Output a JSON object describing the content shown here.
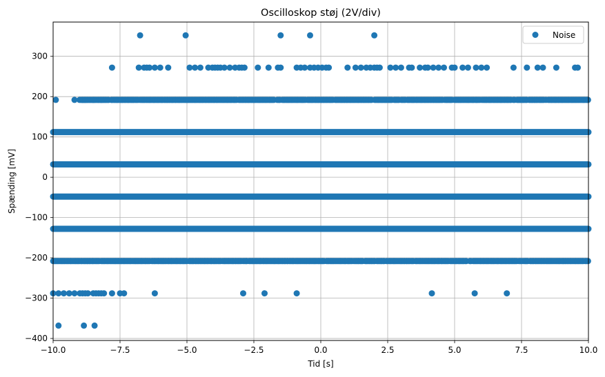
{
  "chart_data": {
    "type": "scatter",
    "title": "Oscilloskop støj (2V/div)",
    "xlabel": "Tid [s]",
    "ylabel": "Spænding [mV]",
    "xlim": [
      -10,
      10
    ],
    "ylim": [
      -405,
      385
    ],
    "grid": true,
    "legend_position": "top-right",
    "marker_color": "#1f77b4",
    "x_ticks": [
      -10,
      -7.5,
      -5,
      -2.5,
      0,
      2.5,
      5,
      7.5,
      10
    ],
    "x_tick_labels": [
      "−10.0",
      "−7.5",
      "−5.0",
      "−2.5",
      "0.0",
      "2.5",
      "5.0",
      "7.5",
      "10.0"
    ],
    "y_ticks": [
      -400,
      -300,
      -200,
      -100,
      0,
      100,
      200,
      300
    ],
    "y_tick_labels": [
      "−400",
      "−300",
      "−200",
      "−100",
      "0",
      "100",
      "200",
      "300"
    ],
    "series": [
      {
        "name": "Noise",
        "levels": [
          {
            "y": 32,
            "density": "continuous",
            "x_range": [
              -10,
              10
            ]
          },
          {
            "y": -48,
            "density": "continuous",
            "x_range": [
              -10,
              10
            ]
          },
          {
            "y": -128,
            "density": "continuous",
            "x_range": [
              -10,
              10
            ]
          },
          {
            "y": 112,
            "density": "continuous",
            "x_range": [
              -10,
              10
            ]
          },
          {
            "y": 192,
            "density": "dense",
            "x_range": [
              -9.0,
              10
            ],
            "sparse_points": [
              -9.9,
              -9.2,
              -8.9,
              -8.8,
              -8.5,
              -8.2
            ]
          },
          {
            "y": -208,
            "density": "dense",
            "x_range": [
              -10,
              10
            ]
          },
          {
            "y": 272,
            "density": "sparse",
            "points": [
              -7.8,
              -6.8,
              -6.6,
              -6.5,
              -6.4,
              -6.2,
              -6.0,
              -5.7,
              -4.9,
              -4.7,
              -4.5,
              -4.2,
              -4.05,
              -3.95,
              -3.85,
              -3.75,
              -3.6,
              -3.4,
              -3.2,
              -3.05,
              -2.95,
              -2.85,
              -2.35,
              -1.95,
              -1.6,
              -1.5,
              -0.9,
              -0.75,
              -0.6,
              -0.4,
              -0.25,
              -0.1,
              0.05,
              0.2,
              0.3,
              1.0,
              1.3,
              1.5,
              1.7,
              1.85,
              2.0,
              2.1,
              2.2,
              2.6,
              2.8,
              3.0,
              3.3,
              3.4,
              3.7,
              3.9,
              4.0,
              4.2,
              4.4,
              4.6,
              4.9,
              5.0,
              5.3,
              5.5,
              5.8,
              6.0,
              6.2,
              7.2,
              7.7,
              8.1,
              8.3,
              8.8,
              9.5,
              9.6
            ]
          },
          {
            "y": -288,
            "density": "sparse",
            "points": [
              -10.0,
              -9.8,
              -9.6,
              -9.4,
              -9.2,
              -9.0,
              -8.9,
              -8.8,
              -8.7,
              -8.5,
              -8.4,
              -8.3,
              -8.2,
              -8.1,
              -7.8,
              -7.5,
              -7.35,
              -6.2,
              -2.9,
              -2.1,
              -0.9,
              4.15,
              5.75,
              6.95
            ]
          },
          {
            "y": 352,
            "density": "sparse",
            "points": [
              -6.75,
              -5.05,
              -1.5,
              -0.4,
              2.0
            ]
          },
          {
            "y": -368,
            "density": "sparse",
            "points": [
              -9.8,
              -8.85,
              -8.45
            ]
          }
        ]
      }
    ]
  }
}
